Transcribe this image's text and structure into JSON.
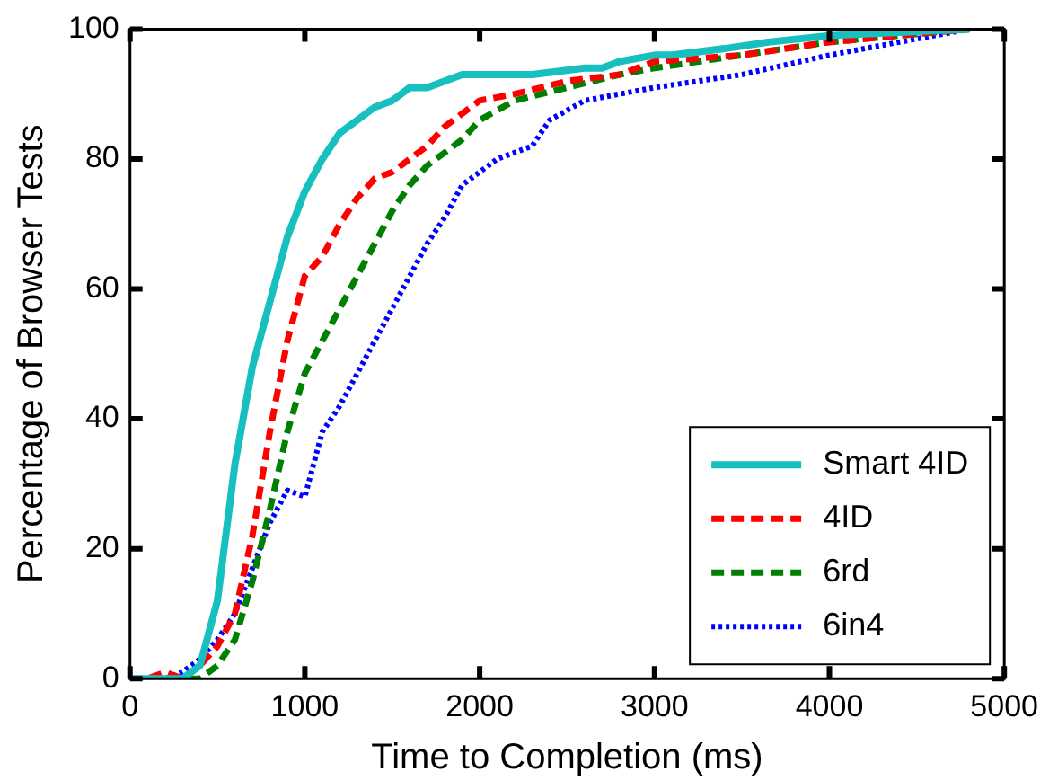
{
  "chart_data": {
    "type": "line",
    "xlabel": "Time to Completion (ms)",
    "ylabel": "Percentage of Browser Tests",
    "xlim": [
      0,
      5000
    ],
    "xticks": [
      0,
      1000,
      2000,
      3000,
      4000,
      5000
    ],
    "ylim": [
      0,
      100
    ],
    "yticks": [
      0,
      20,
      40,
      60,
      80,
      100
    ],
    "grid": false,
    "legend": "bottom right",
    "marker": "none",
    "series": [
      {
        "name": "Smart 4ID",
        "color": "#17bfbf",
        "line_style": "solid",
        "x": [
          0,
          200,
          300,
          400,
          500,
          600,
          700,
          800,
          900,
          1000,
          1100,
          1200,
          1300,
          1400,
          1500,
          1600,
          1700,
          1800,
          1900,
          2000,
          2300,
          2600,
          2700,
          2800,
          3000,
          3100,
          3400,
          3650,
          4000,
          4800
        ],
        "values": [
          0,
          0,
          0,
          2,
          12,
          33,
          48,
          58,
          68,
          75,
          80,
          84,
          86,
          88,
          89,
          91,
          91,
          92,
          93,
          93,
          93,
          94,
          94,
          95,
          96,
          96,
          97,
          98,
          99,
          100
        ]
      },
      {
        "name": "4ID",
        "color": "#ff0000",
        "line_style": "dashed",
        "x": [
          0,
          100,
          200,
          300,
          400,
          500,
          600,
          700,
          800,
          900,
          1000,
          1100,
          1200,
          1300,
          1400,
          1500,
          1600,
          1700,
          1800,
          1900,
          2000,
          2200,
          2500,
          2800,
          3000,
          3500,
          4000,
          4800
        ],
        "values": [
          0,
          0,
          1,
          0,
          2,
          5,
          10,
          22,
          38,
          52,
          62,
          65,
          70,
          74,
          77,
          78,
          80,
          82,
          85,
          87,
          89,
          90,
          92,
          93,
          95,
          96,
          98,
          100
        ]
      },
      {
        "name": "6rd",
        "color": "#008000",
        "line_style": "dashed",
        "x": [
          0,
          300,
          400,
          500,
          600,
          700,
          800,
          900,
          1000,
          1100,
          1200,
          1300,
          1400,
          1500,
          1600,
          1700,
          1800,
          1900,
          2000,
          2200,
          2500,
          2800,
          3000,
          3500,
          4000,
          4800
        ],
        "values": [
          0,
          0,
          0,
          2,
          6,
          15,
          26,
          38,
          47,
          52,
          57,
          62,
          67,
          72,
          76,
          79,
          81,
          83,
          86,
          89,
          91,
          93,
          94,
          96,
          98,
          100
        ]
      },
      {
        "name": "6in4",
        "color": "#0000ff",
        "line_style": "dotted",
        "x": [
          0,
          200,
          300,
          400,
          500,
          600,
          700,
          800,
          900,
          1000,
          1100,
          1200,
          1300,
          1400,
          1500,
          1600,
          1700,
          1800,
          1900,
          2000,
          2100,
          2200,
          2300,
          2400,
          2600,
          3000,
          3500,
          4000,
          4800
        ],
        "values": [
          0,
          0,
          1,
          3,
          6,
          10,
          17,
          24,
          29,
          28,
          38,
          42,
          47,
          52,
          57,
          62,
          67,
          71,
          76,
          78,
          80,
          81,
          82,
          86,
          89,
          91,
          93,
          96,
          100
        ]
      }
    ]
  }
}
